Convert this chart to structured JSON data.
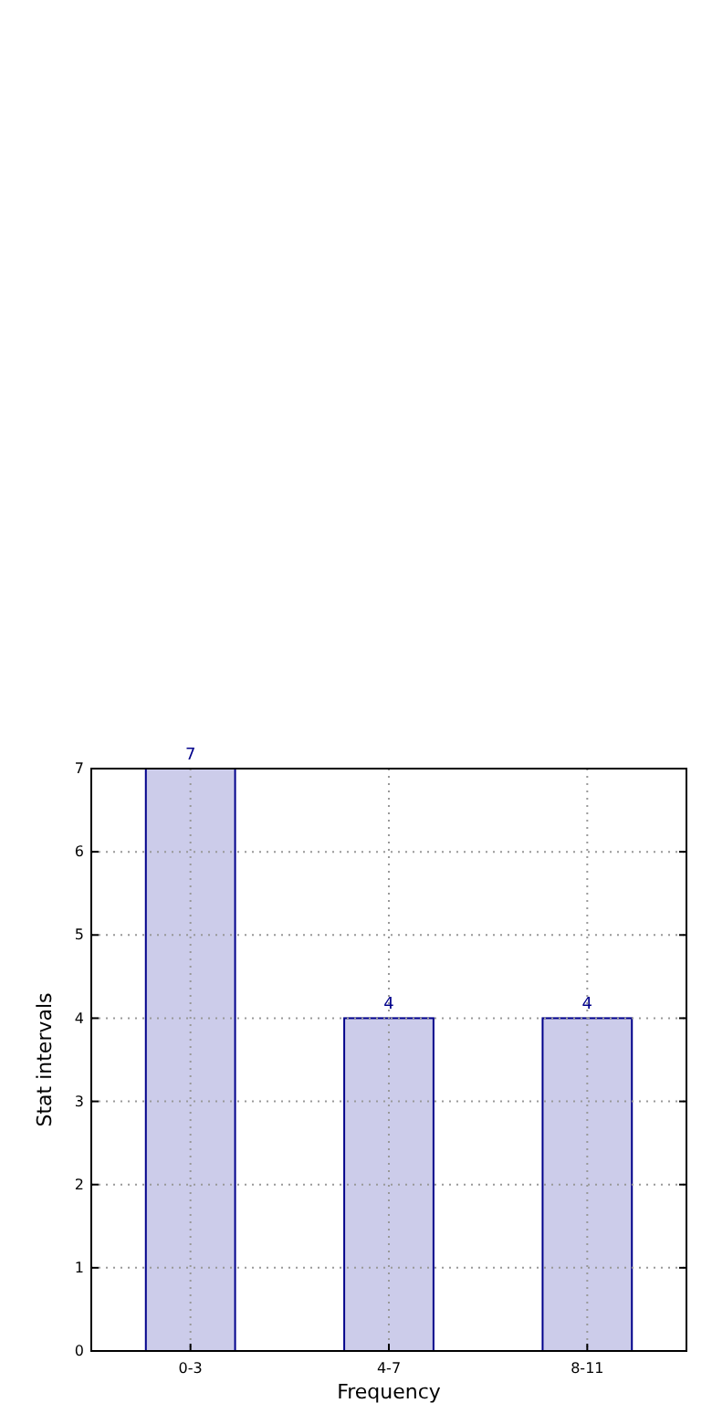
{
  "chart_data": {
    "type": "bar",
    "xlabel": "Frequency",
    "ylabel": "Stat intervals",
    "categories": [
      "0-3",
      "4-7",
      "8-11"
    ],
    "values": [
      7,
      4,
      4
    ],
    "color": "#ccccea",
    "ylim": [
      0,
      7
    ],
    "yticks": [
      0,
      1,
      2,
      3,
      4,
      5,
      6,
      7
    ],
    "grid": true,
    "data_labels": true
  }
}
